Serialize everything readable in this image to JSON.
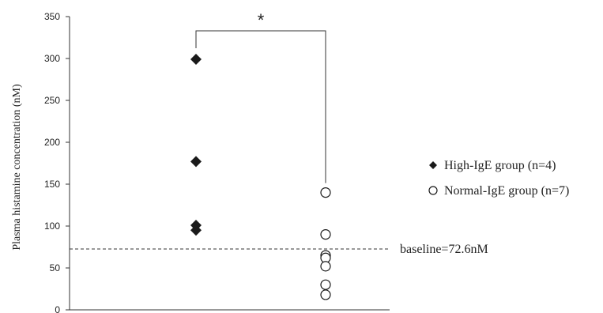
{
  "chart_data": {
    "type": "scatter",
    "ylabel": "Plasma histamine concentration (nM)",
    "ylim": [
      0,
      350
    ],
    "yticks": [
      0,
      50,
      100,
      150,
      200,
      250,
      300,
      350
    ],
    "series": [
      {
        "name": "High-IgE group (n=4)",
        "marker": "diamond",
        "color": "#1a1a1a",
        "values": [
          299,
          177,
          101,
          95
        ]
      },
      {
        "name": "Normal-IgE group (n=7)",
        "marker": "circle-open",
        "color": "#1a1a1a",
        "values": [
          140,
          90,
          65,
          62,
          52,
          30,
          18
        ]
      }
    ],
    "baseline": {
      "value": 72.6,
      "label": "baseline=72.6nM"
    },
    "significance": {
      "label": "*",
      "between": [
        "High-IgE group (n=4)",
        "Normal-IgE group (n=7)"
      ]
    },
    "legend_position": "right"
  }
}
